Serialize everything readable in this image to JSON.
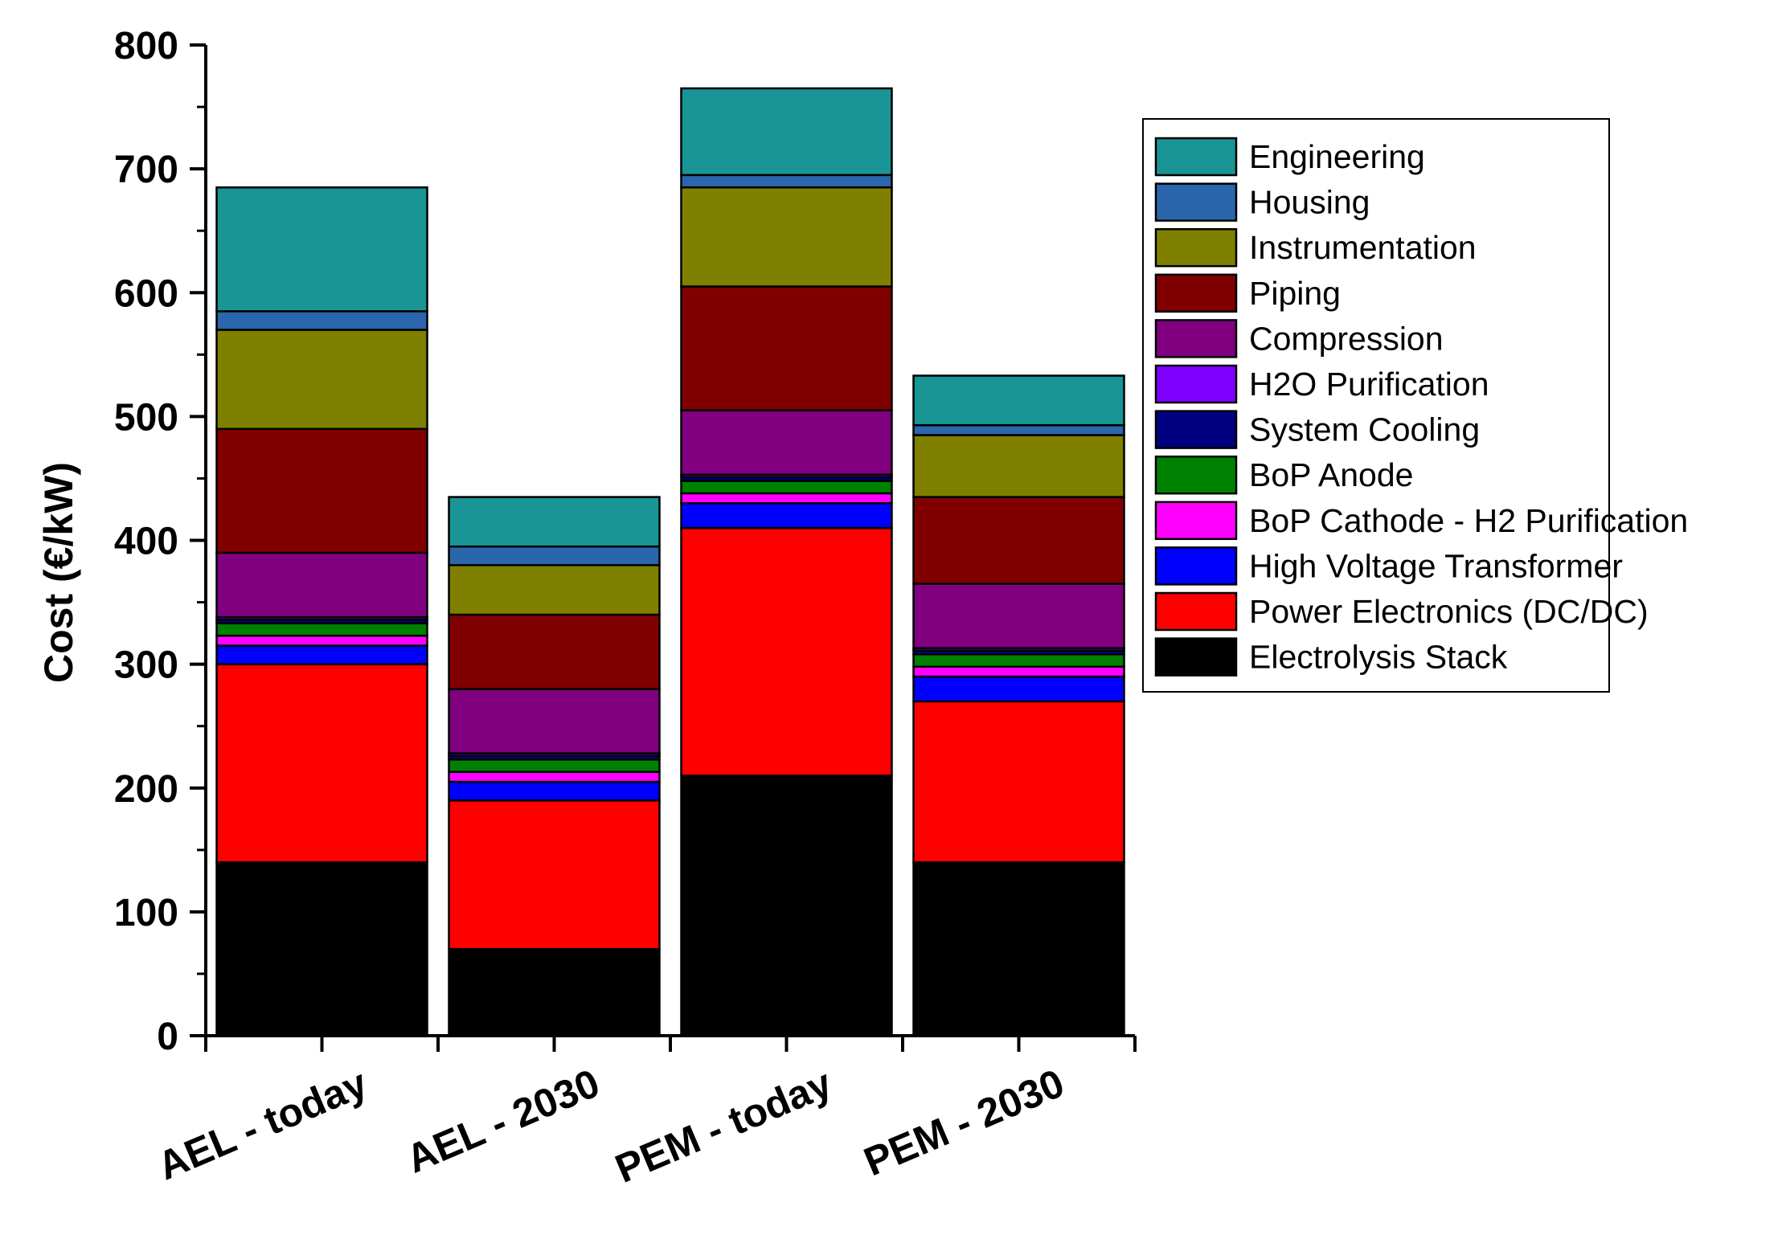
{
  "chart_data": {
    "type": "bar",
    "stacked": true,
    "ylabel": "Cost (€/kW)",
    "ylim": [
      0,
      800
    ],
    "yticks": [
      0,
      100,
      200,
      300,
      400,
      500,
      600,
      700,
      800
    ],
    "yticks_labels": [
      "0",
      "100",
      "200",
      "300",
      "400",
      "500",
      "600",
      "700",
      "800"
    ],
    "categories": [
      "AEL - today",
      "AEL - 2030",
      "PEM - today",
      "PEM - 2030"
    ],
    "legend_position": "right",
    "series": [
      {
        "name": "Electrolysis Stack",
        "color": "#000000",
        "values": [
          140,
          70,
          210,
          140
        ]
      },
      {
        "name": "Power Electronics (DC/DC)",
        "color": "#ff0000",
        "values": [
          160,
          120,
          200,
          130
        ]
      },
      {
        "name": "High Voltage Transformer",
        "color": "#0000ff",
        "values": [
          15,
          15,
          20,
          20
        ]
      },
      {
        "name": "BoP Cathode - H2 Purification",
        "color": "#ff00ff",
        "values": [
          8,
          8,
          8,
          8
        ]
      },
      {
        "name": "BoP Anode",
        "color": "#008000",
        "values": [
          10,
          10,
          10,
          10
        ]
      },
      {
        "name": "System Cooling",
        "color": "#000080",
        "values": [
          3,
          3,
          3,
          3
        ]
      },
      {
        "name": "H2O Purification",
        "color": "#8000ff",
        "values": [
          2,
          2,
          2,
          2
        ]
      },
      {
        "name": "Compression",
        "color": "#800080",
        "values": [
          52,
          52,
          52,
          52
        ]
      },
      {
        "name": "Piping",
        "color": "#800000",
        "values": [
          100,
          60,
          100,
          70
        ]
      },
      {
        "name": "Instrumentation",
        "color": "#808000",
        "values": [
          80,
          40,
          80,
          50
        ]
      },
      {
        "name": "Housing",
        "color": "#2b65ac",
        "values": [
          15,
          15,
          10,
          8
        ]
      },
      {
        "name": "Engineering",
        "color": "#199595",
        "values": [
          100,
          40,
          70,
          40
        ]
      }
    ]
  }
}
